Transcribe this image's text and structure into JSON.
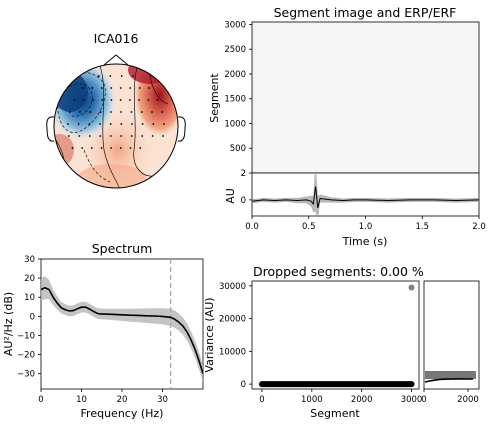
{
  "figure": {
    "ica_title": "ICA016"
  },
  "chart_data": [
    {
      "type": "heatmap",
      "title": "ICA016",
      "sensors": 60,
      "pattern": "topomap: strong negative (blue) lobe front-left, positive (red) lobe front-right and right side"
    },
    {
      "type": "heatmap",
      "title": "Segment image and ERP/ERF",
      "xlabel": "",
      "ylabel": "Segment",
      "ylim": [
        0,
        3050
      ],
      "yticks": [
        "500",
        "1000",
        "1500",
        "2000",
        "2500",
        "3000"
      ]
    },
    {
      "type": "line",
      "title": "",
      "xlabel": "Time (s)",
      "ylabel": "AU",
      "xlim": [
        0,
        2
      ],
      "ylim": [
        -1.2,
        2.0
      ],
      "xticks": [
        "0.0",
        "0.5",
        "1.0",
        "1.5",
        "2.0"
      ],
      "yticks": [
        "0",
        "2"
      ],
      "series": [
        {
          "x": [
            0.0,
            0.1,
            0.2,
            0.3,
            0.4,
            0.48,
            0.52,
            0.54,
            0.56,
            0.58,
            0.6,
            0.7,
            0.8,
            0.9,
            1.0,
            1.2,
            1.4,
            1.6,
            1.8,
            2.0
          ],
          "y": [
            -0.1,
            0.0,
            -0.05,
            0.0,
            -0.05,
            0.0,
            -0.1,
            -0.3,
            1.0,
            -0.6,
            0.1,
            0.0,
            -0.05,
            0.0,
            0.0,
            -0.05,
            0.0,
            0.0,
            -0.05,
            0.0
          ],
          "band": [
            0.15,
            0.15,
            0.15,
            0.15,
            0.2,
            0.25,
            0.4,
            0.6,
            1.9,
            0.9,
            0.3,
            0.2,
            0.15,
            0.15,
            0.15,
            0.15,
            0.15,
            0.15,
            0.15,
            0.15
          ]
        }
      ]
    },
    {
      "type": "line",
      "title": "Spectrum",
      "xlabel": "Frequency (Hz)",
      "ylabel": "AU²/Hz (dB)",
      "xlim": [
        0,
        40
      ],
      "ylim": [
        -38,
        30
      ],
      "xticks": [
        "0",
        "10",
        "20",
        "30"
      ],
      "yticks": [
        "30",
        "20",
        "10",
        "0",
        "−10",
        "−20",
        "−30"
      ],
      "vline": 32,
      "series": [
        {
          "x": [
            0,
            1,
            2,
            3,
            4,
            5,
            6,
            7,
            8,
            9,
            10,
            11,
            12,
            13,
            14,
            15,
            16,
            18,
            20,
            22,
            24,
            26,
            28,
            30,
            32,
            33,
            34,
            35,
            36,
            37,
            38,
            39,
            40
          ],
          "y": [
            14,
            15,
            14,
            10,
            7,
            4.5,
            3.5,
            2.8,
            3,
            4,
            4.8,
            4.8,
            3.8,
            2.5,
            1.5,
            1.2,
            1.2,
            1.0,
            0.8,
            0.6,
            0.5,
            0.3,
            0.2,
            0,
            -0.5,
            -1.5,
            -3,
            -5,
            -8,
            -12,
            -17,
            -23,
            -30
          ],
          "band": [
            6,
            6,
            5,
            4,
            3.5,
            3,
            2.8,
            2.8,
            2.8,
            2.8,
            2.8,
            2.8,
            2.8,
            2.8,
            2.8,
            2.8,
            2.8,
            3,
            3.2,
            3.4,
            3.6,
            3.8,
            4,
            4.2,
            4.5,
            4.5,
            4.5,
            4.5,
            4.5,
            4.5,
            4.5,
            4.5,
            4.5
          ]
        }
      ]
    },
    {
      "type": "scatter",
      "title": "Dropped segments: 0.00 %",
      "xlabel": "Segment",
      "ylabel": "Variance (AU)",
      "xlim": [
        -200,
        3150
      ],
      "ylim": [
        -1500,
        31500
      ],
      "xticks": [
        "0",
        "1000",
        "2000",
        "3000"
      ],
      "yticks": [
        "0",
        "10000",
        "20000",
        "30000"
      ],
      "points": [
        [
          3000,
          29500
        ]
      ],
      "baseline": {
        "x": [
          0,
          3000
        ],
        "y": 0
      }
    },
    {
      "type": "area",
      "title": "",
      "xlabel": "",
      "ylabel": "",
      "xticks": [
        "0",
        "2000"
      ],
      "xlim": [
        0,
        2500
      ],
      "description_of_shape": "horizontal histogram with density concentrated near zero variance"
    }
  ]
}
